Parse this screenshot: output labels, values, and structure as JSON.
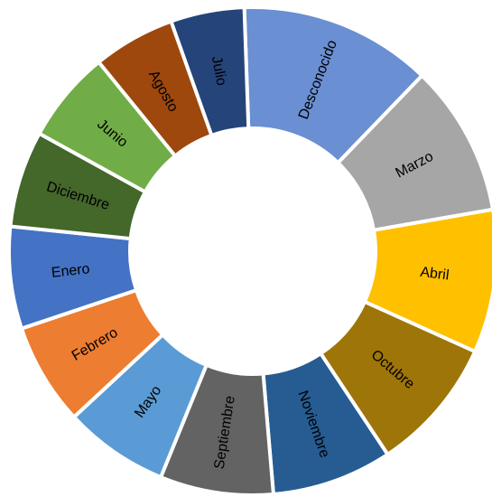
{
  "chart_data": {
    "type": "pie",
    "subtype": "donut",
    "legend": "none",
    "categories": [
      "Desconocido",
      "Marzo",
      "Abril",
      "Octubre",
      "Noviembre",
      "Septiembre",
      "Mayo",
      "Febrero",
      "Enero",
      "Diciembre",
      "Junio",
      "Agosto",
      "Julio"
    ],
    "values": [
      13.6,
      10.7,
      10.1,
      9.5,
      8.5,
      8.0,
      7.4,
      7.2,
      7.2,
      6.8,
      6.5,
      5.8,
      5.2
    ],
    "colors": [
      "#6A8FD2",
      "#A6A6A6",
      "#FFC000",
      "#9E7508",
      "#265C92",
      "#636363",
      "#5B9BD5",
      "#ED7D31",
      "#4472C4",
      "#44672A",
      "#70AD47",
      "#9E480E",
      "#254479"
    ]
  }
}
